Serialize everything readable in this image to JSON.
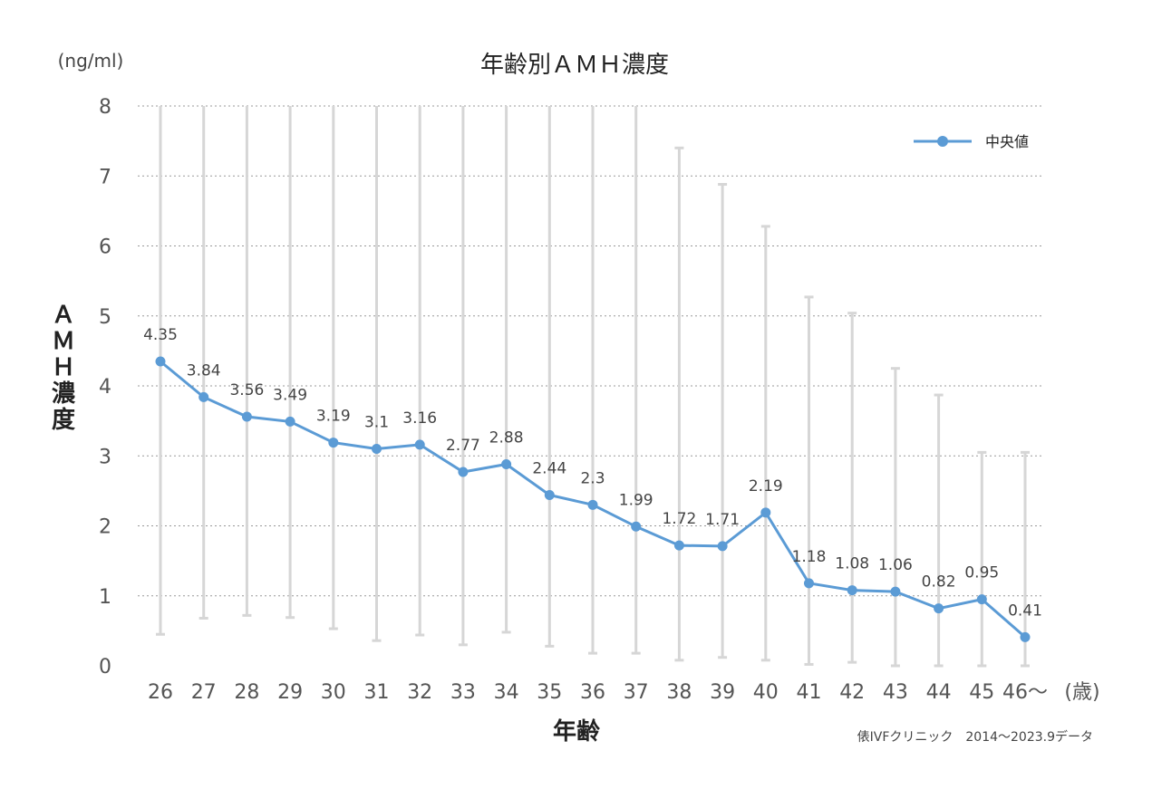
{
  "chart_data": {
    "type": "line",
    "title": "年齢別ＡＭＨ濃度",
    "unit_label": "(ng/ml)",
    "xlabel": "年齢",
    "x_unit": "(歳)",
    "ylabel": "ＡＭＨ濃度",
    "ylim": [
      0,
      8
    ],
    "yticks": [
      "0",
      "1",
      "2",
      "3",
      "4",
      "5",
      "6",
      "7",
      "8"
    ],
    "grid": true,
    "legend_position": "top-right",
    "categories": [
      "26",
      "27",
      "28",
      "29",
      "30",
      "31",
      "32",
      "33",
      "34",
      "35",
      "36",
      "37",
      "38",
      "39",
      "40",
      "41",
      "42",
      "43",
      "44",
      "45",
      "46〜"
    ],
    "series": [
      {
        "name": "中央値",
        "color": "#5b9bd5",
        "values": [
          4.35,
          3.84,
          3.56,
          3.49,
          3.19,
          3.1,
          3.16,
          2.77,
          2.88,
          2.44,
          2.3,
          1.99,
          1.72,
          1.71,
          2.19,
          1.18,
          1.08,
          1.06,
          0.82,
          0.95,
          0.41
        ],
        "labels": [
          "4.35",
          "3.84",
          "3.56",
          "3.49",
          "3.19",
          "3.1",
          "3.16",
          "2.77",
          "2.88",
          "2.44",
          "2.3",
          "1.99",
          "1.72",
          "1.71",
          "2.19",
          "1.18",
          "1.08",
          "1.06",
          "0.82",
          "0.95",
          "0.41"
        ]
      }
    ],
    "range_low": [
      0.45,
      0.68,
      0.72,
      0.69,
      0.53,
      0.36,
      0.44,
      0.3,
      0.48,
      0.28,
      0.18,
      0.18,
      0.08,
      0.12,
      0.08,
      0.02,
      0.05,
      0.0,
      0.0,
      0.0,
      0.0
    ],
    "range_high": [
      8,
      8,
      8,
      8,
      8,
      8,
      8,
      8,
      8,
      8,
      8,
      8,
      7.4,
      6.88,
      6.28,
      5.27,
      5.04,
      4.25,
      3.87,
      3.05,
      3.05
    ],
    "source": "俵IVFクリニック　2014〜2023.9データ"
  }
}
